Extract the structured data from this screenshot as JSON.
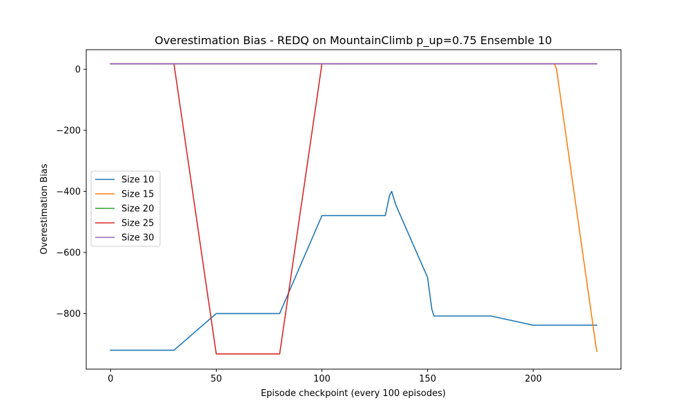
{
  "chart_data": {
    "type": "line",
    "title": "Overestimation Bias - REDQ on MountainClimb p_up=0.75 Ensemble 10",
    "xlabel": "Episode checkpoint (every 100 episodes)",
    "ylabel": "Overestimation Bias",
    "xlim": [
      -11.5,
      241.5
    ],
    "ylim": [
      -982,
      64
    ],
    "xticks": [
      0,
      50,
      100,
      150,
      200
    ],
    "yticks": [
      0,
      -200,
      -400,
      -600,
      -800
    ],
    "ytick_labels": [
      "0",
      "−200",
      "−400",
      "−600",
      "−800"
    ],
    "grid": false,
    "legend_position": "center-left",
    "series": [
      {
        "name": "Size 10",
        "color": "#1f77b4",
        "x": [
          0,
          30,
          50,
          80,
          100,
          130,
          132,
          133,
          135,
          150,
          152,
          153,
          180,
          200,
          230
        ],
        "y": [
          -920,
          -920,
          -800,
          -800,
          -479,
          -479,
          -413,
          -400,
          -445,
          -682,
          -785,
          -808,
          -808,
          -838,
          -838
        ]
      },
      {
        "name": "Size 15",
        "color": "#ff7f0e",
        "x": [
          0,
          210,
          211,
          230
        ],
        "y": [
          18,
          18,
          0,
          -924
        ]
      },
      {
        "name": "Size 20",
        "color": "#2ca02c",
        "x": [
          0,
          230
        ],
        "y": [
          18,
          18
        ]
      },
      {
        "name": "Size 25",
        "color": "#d62728",
        "x": [
          0,
          30,
          50,
          80,
          100,
          230
        ],
        "y": [
          18,
          18,
          -932,
          -932,
          18,
          18
        ]
      },
      {
        "name": "Size 30",
        "color": "#9467bd",
        "x": [
          0,
          230
        ],
        "y": [
          18,
          18
        ]
      }
    ]
  }
}
